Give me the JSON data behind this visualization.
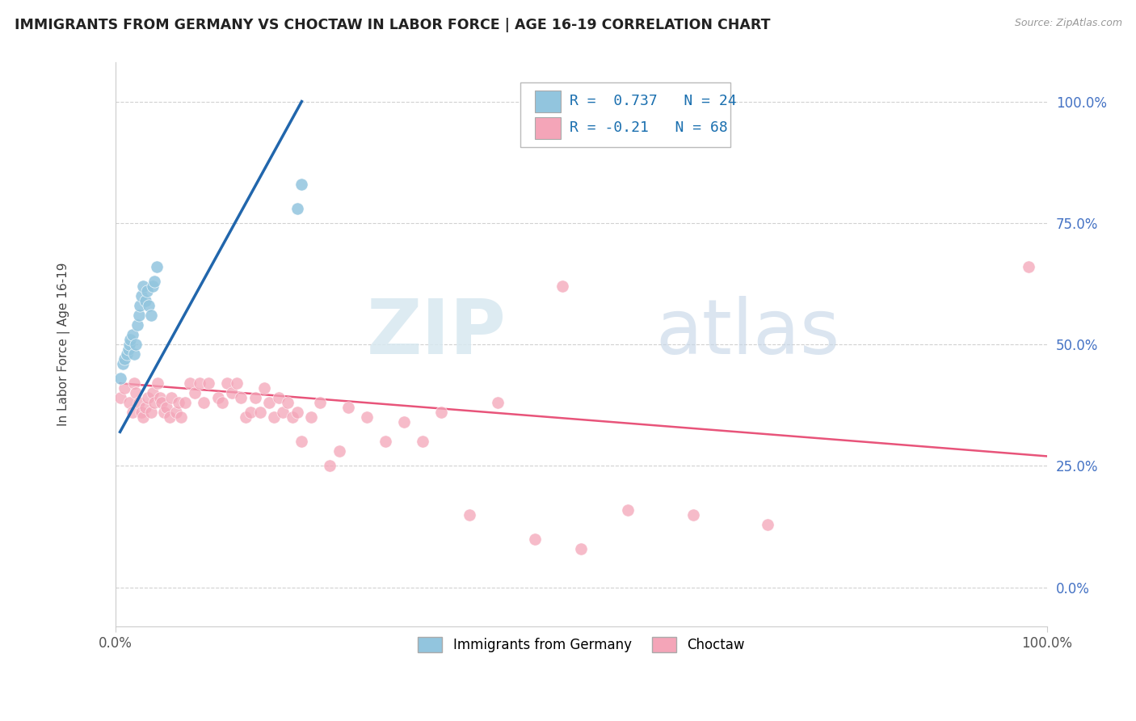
{
  "title": "IMMIGRANTS FROM GERMANY VS CHOCTAW IN LABOR FORCE | AGE 16-19 CORRELATION CHART",
  "source": "Source: ZipAtlas.com",
  "ylabel": "In Labor Force | Age 16-19",
  "blue_label": "Immigrants from Germany",
  "pink_label": "Choctaw",
  "blue_R": 0.737,
  "blue_N": 24,
  "pink_R": -0.21,
  "pink_N": 68,
  "blue_color": "#92c5de",
  "pink_color": "#f4a5b8",
  "blue_line_color": "#2166ac",
  "pink_line_color": "#e8547a",
  "xlim": [
    0.0,
    1.0
  ],
  "ylim": [
    -0.08,
    1.08
  ],
  "xtick_positions": [
    0.0,
    1.0
  ],
  "xtick_labels": [
    "0.0%",
    "100.0%"
  ],
  "ytick_positions": [
    0.0,
    0.25,
    0.5,
    0.75,
    1.0
  ],
  "ytick_labels": [
    "0.0%",
    "25.0%",
    "50.0%",
    "75.0%",
    "100.0%"
  ],
  "blue_x": [
    0.005,
    0.008,
    0.01,
    0.012,
    0.014,
    0.015,
    0.016,
    0.018,
    0.02,
    0.022,
    0.024,
    0.025,
    0.026,
    0.028,
    0.03,
    0.032,
    0.034,
    0.036,
    0.038,
    0.04,
    0.042,
    0.044,
    0.195,
    0.2
  ],
  "blue_y": [
    0.43,
    0.46,
    0.47,
    0.48,
    0.49,
    0.5,
    0.51,
    0.52,
    0.48,
    0.5,
    0.54,
    0.56,
    0.58,
    0.6,
    0.62,
    0.59,
    0.61,
    0.58,
    0.56,
    0.62,
    0.63,
    0.66,
    0.78,
    0.83
  ],
  "pink_x": [
    0.005,
    0.01,
    0.015,
    0.018,
    0.02,
    0.022,
    0.025,
    0.028,
    0.03,
    0.032,
    0.035,
    0.038,
    0.04,
    0.042,
    0.045,
    0.048,
    0.05,
    0.052,
    0.055,
    0.058,
    0.06,
    0.065,
    0.068,
    0.07,
    0.075,
    0.08,
    0.085,
    0.09,
    0.095,
    0.1,
    0.11,
    0.115,
    0.12,
    0.125,
    0.13,
    0.135,
    0.14,
    0.145,
    0.15,
    0.155,
    0.16,
    0.165,
    0.17,
    0.175,
    0.18,
    0.185,
    0.19,
    0.195,
    0.2,
    0.21,
    0.22,
    0.23,
    0.24,
    0.25,
    0.27,
    0.29,
    0.31,
    0.33,
    0.35,
    0.38,
    0.41,
    0.45,
    0.48,
    0.5,
    0.55,
    0.62,
    0.7,
    0.98
  ],
  "pink_y": [
    0.39,
    0.41,
    0.38,
    0.36,
    0.42,
    0.4,
    0.38,
    0.36,
    0.35,
    0.37,
    0.39,
    0.36,
    0.4,
    0.38,
    0.42,
    0.39,
    0.38,
    0.36,
    0.37,
    0.35,
    0.39,
    0.36,
    0.38,
    0.35,
    0.38,
    0.42,
    0.4,
    0.42,
    0.38,
    0.42,
    0.39,
    0.38,
    0.42,
    0.4,
    0.42,
    0.39,
    0.35,
    0.36,
    0.39,
    0.36,
    0.41,
    0.38,
    0.35,
    0.39,
    0.36,
    0.38,
    0.35,
    0.36,
    0.3,
    0.35,
    0.38,
    0.25,
    0.28,
    0.37,
    0.35,
    0.3,
    0.34,
    0.3,
    0.36,
    0.15,
    0.38,
    0.1,
    0.62,
    0.08,
    0.16,
    0.15,
    0.13,
    0.66
  ],
  "blue_trend_x": [
    0.005,
    0.2
  ],
  "blue_trend_y_start": 0.32,
  "blue_trend_y_end": 1.0,
  "pink_trend_x": [
    0.005,
    1.0
  ],
  "pink_trend_y_start": 0.42,
  "pink_trend_y_end": 0.27,
  "watermark_zip": "ZIP",
  "watermark_atlas": "atlas"
}
